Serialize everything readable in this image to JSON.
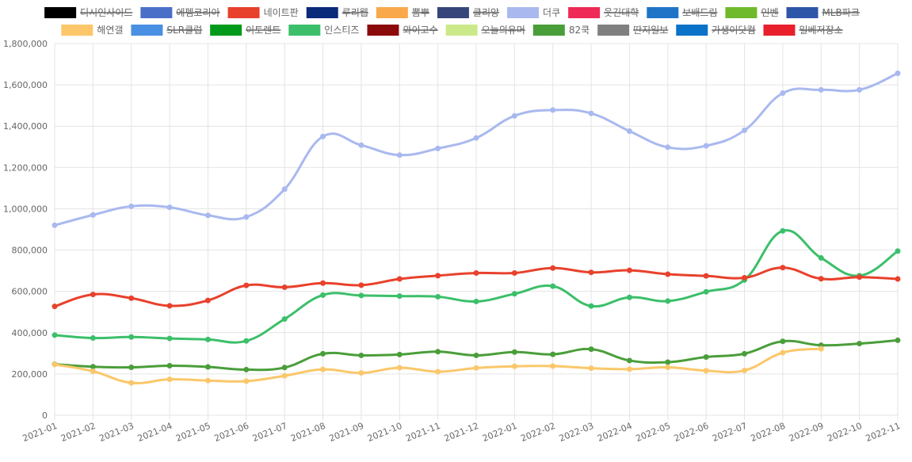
{
  "chart_data": {
    "type": "line",
    "x": [
      "2021-01",
      "2021-02",
      "2021-03",
      "2021-04",
      "2021-05",
      "2021-06",
      "2021-07",
      "2021-08",
      "2021-09",
      "2021-10",
      "2021-11",
      "2021-12",
      "2022-01",
      "2022-02",
      "2022-03",
      "2022-04",
      "2022-05",
      "2022-06",
      "2022-07",
      "2022-08",
      "2022-09",
      "2022-10",
      "2022-11"
    ],
    "ylim": [
      0,
      1800000
    ],
    "yticks": [
      0,
      200000,
      400000,
      600000,
      800000,
      1000000,
      1200000,
      1400000,
      1600000,
      1800000
    ],
    "ytick_labels": [
      "0",
      "200,000",
      "400,000",
      "600,000",
      "800,000",
      "1,000,000",
      "1,200,000",
      "1,400,000",
      "1,600,000",
      "1,800,000"
    ],
    "grid": true,
    "legend_position": "top",
    "legend": [
      {
        "name": "디시인사이드",
        "color": "#000000",
        "hidden": true
      },
      {
        "name": "에펨코리아",
        "color": "#4a6fc9",
        "hidden": true
      },
      {
        "name": "네이트판",
        "color": "#e8412c",
        "hidden": false
      },
      {
        "name": "루리웹",
        "color": "#0a2a7a",
        "hidden": true
      },
      {
        "name": "뽐뿌",
        "color": "#f9a94b",
        "hidden": true
      },
      {
        "name": "클리앙",
        "color": "#36467a",
        "hidden": true
      },
      {
        "name": "더쿠",
        "color": "#a9b9ef",
        "hidden": false
      },
      {
        "name": "웃긴대학",
        "color": "#ef2a57",
        "hidden": true
      },
      {
        "name": "보배드림",
        "color": "#1f74c8",
        "hidden": true
      },
      {
        "name": "인벤",
        "color": "#6fba2c",
        "hidden": true
      },
      {
        "name": "MLB파크",
        "color": "#2e56a8",
        "hidden": true
      },
      {
        "name": "해연갤",
        "color": "#fbc76a",
        "hidden": false
      },
      {
        "name": "SLR클럽",
        "color": "#4a90e2",
        "hidden": true
      },
      {
        "name": "이토렌트",
        "color": "#009a1a",
        "hidden": true
      },
      {
        "name": "인스티즈",
        "color": "#3cbf6a",
        "hidden": false
      },
      {
        "name": "와이고수",
        "color": "#8b0a0a",
        "hidden": true
      },
      {
        "name": "오늘의유머",
        "color": "#cce98a",
        "hidden": true
      },
      {
        "name": "82쿡",
        "color": "#4a9e3a",
        "hidden": false
      },
      {
        "name": "딴지일보",
        "color": "#808080",
        "hidden": true
      },
      {
        "name": "가생이닷컴",
        "color": "#0a72c8",
        "hidden": true
      },
      {
        "name": "일베저장소",
        "color": "#e8202c",
        "hidden": true
      }
    ],
    "series": [
      {
        "name": "더쿠",
        "color": "#a9b9ef",
        "values": [
          920000,
          970000,
          1012000,
          1007000,
          968000,
          960000,
          1095000,
          1350000,
          1308000,
          1260000,
          1292000,
          1343000,
          1450000,
          1478000,
          1462000,
          1376000,
          1298000,
          1305000,
          1380000,
          1560000,
          1576000,
          1576000,
          1656000
        ]
      },
      {
        "name": "인스티즈",
        "color": "#3cbf6a",
        "values": [
          388000,
          374000,
          379000,
          372000,
          367000,
          360000,
          466000,
          582000,
          580000,
          577000,
          574000,
          551000,
          588000,
          625000,
          529000,
          571000,
          553000,
          598000,
          655000,
          893000,
          762000,
          676000,
          795000
        ]
      },
      {
        "name": "네이트판",
        "color": "#e8412c",
        "values": [
          527000,
          585000,
          567000,
          530000,
          556000,
          629000,
          620000,
          640000,
          630000,
          660000,
          676000,
          689000,
          689000,
          713000,
          692000,
          702000,
          683000,
          675000,
          666000,
          715000,
          661000,
          669000,
          660000
        ]
      },
      {
        "name": "82쿡",
        "color": "#4a9e3a",
        "values": [
          247000,
          235000,
          232000,
          240000,
          234000,
          221000,
          231000,
          298000,
          290000,
          294000,
          308000,
          290000,
          306000,
          295000,
          320000,
          265000,
          257000,
          282000,
          298000,
          358000,
          339000,
          347000,
          363000
        ]
      },
      {
        "name": "해연갤",
        "color": "#fbc76a",
        "values": [
          246000,
          213000,
          157000,
          174000,
          168000,
          165000,
          191000,
          222000,
          205000,
          230000,
          211000,
          229000,
          237000,
          238000,
          228000,
          223000,
          232000,
          216000,
          217000,
          303000,
          322000,
          null,
          null
        ]
      }
    ]
  }
}
